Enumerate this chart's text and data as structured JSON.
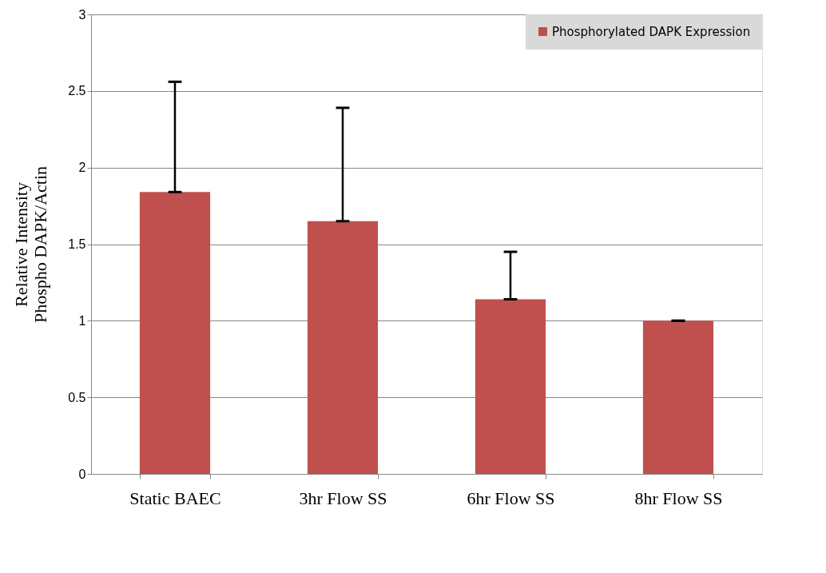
{
  "chart_data": {
    "type": "bar",
    "ylabel": "Relative Intensity\nPhospho DAPK/Actin",
    "categories": [
      "Static BAEC",
      "3hr Flow SS",
      "6hr Flow SS",
      "8hr Flow SS"
    ],
    "series": [
      {
        "name": "Phosphorylated DAPK Expression",
        "color": "#c0504d",
        "values": [
          1.84,
          1.65,
          1.14,
          1.0
        ],
        "errors": [
          [
            1.84,
            2.56
          ],
          [
            1.65,
            2.39
          ],
          [
            1.14,
            1.45
          ],
          [
            1.0,
            1.0
          ]
        ]
      }
    ],
    "ylim": [
      0,
      3
    ],
    "yticks": [
      0,
      0.5,
      1,
      1.5,
      2,
      2.5,
      3
    ],
    "grid": "y",
    "legend": "top right"
  }
}
